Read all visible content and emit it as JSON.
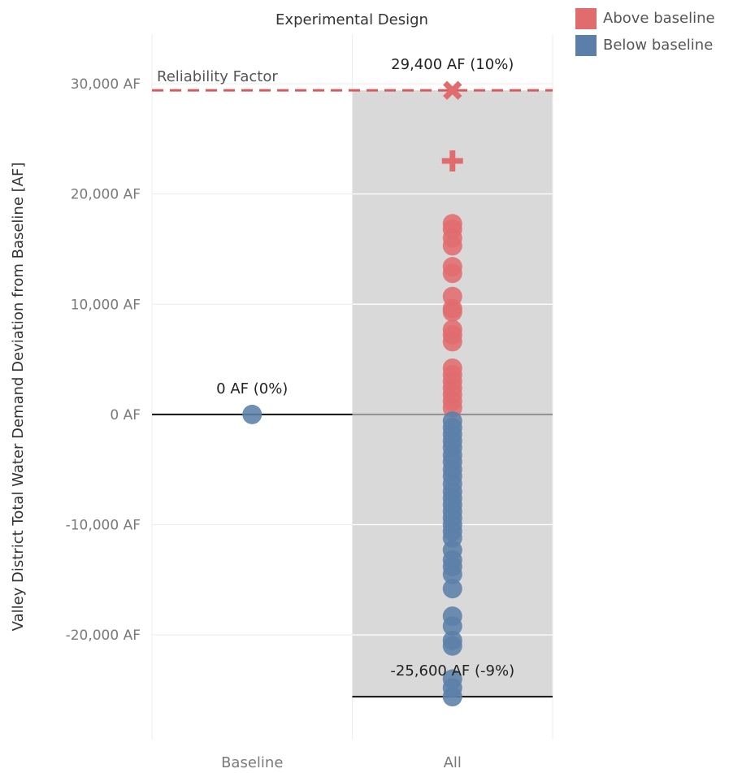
{
  "chart_data": {
    "type": "scatter",
    "title": "Experimental Design",
    "ylabel": "Valley District Total Water Demand Deviation from Baseline [AF]",
    "xlabel": "",
    "categories": [
      "Baseline",
      "All"
    ],
    "ylim": [
      -29500,
      34500
    ],
    "y_ticks": [
      30000,
      20000,
      10000,
      0,
      -10000,
      -20000
    ],
    "y_tick_labels": [
      "30,000 AF",
      "20,000 AF",
      "10,000 AF",
      "0 AF",
      "-10,000 AF",
      "-20,000 AF"
    ],
    "grid": true,
    "legend_position": "top-right",
    "legend": [
      {
        "label": "Above baseline",
        "color": "#e06c6e"
      },
      {
        "label": "Below baseline",
        "color": "#5b7fa9"
      }
    ],
    "reference_line": {
      "label": "Reliability Factor",
      "value": 29400,
      "color": "#d9595c"
    },
    "series": [
      {
        "name": "Baseline",
        "category": "Baseline",
        "points": [
          {
            "y": 0,
            "marker": "circle",
            "group": "Below baseline"
          }
        ]
      },
      {
        "name": "All",
        "category": "All",
        "band": [
          -25600,
          29400
        ],
        "points": [
          {
            "y": 29400,
            "marker": "x",
            "group": "Above baseline"
          },
          {
            "y": 23000,
            "marker": "plus",
            "group": "Above baseline"
          },
          {
            "y": 17300,
            "group": "Above baseline"
          },
          {
            "y": 16800,
            "group": "Above baseline"
          },
          {
            "y": 16000,
            "group": "Above baseline"
          },
          {
            "y": 15300,
            "group": "Above baseline"
          },
          {
            "y": 13400,
            "group": "Above baseline"
          },
          {
            "y": 12800,
            "group": "Above baseline"
          },
          {
            "y": 10700,
            "group": "Above baseline"
          },
          {
            "y": 9600,
            "group": "Above baseline"
          },
          {
            "y": 9300,
            "group": "Above baseline"
          },
          {
            "y": 7700,
            "group": "Above baseline"
          },
          {
            "y": 7200,
            "group": "Above baseline"
          },
          {
            "y": 6600,
            "group": "Above baseline"
          },
          {
            "y": 4200,
            "group": "Above baseline"
          },
          {
            "y": 3600,
            "group": "Above baseline"
          },
          {
            "y": 3000,
            "group": "Above baseline"
          },
          {
            "y": 2400,
            "group": "Above baseline"
          },
          {
            "y": 1800,
            "group": "Above baseline"
          },
          {
            "y": 1200,
            "group": "Above baseline"
          },
          {
            "y": 600,
            "group": "Above baseline"
          },
          {
            "y": -600,
            "group": "Below baseline"
          },
          {
            "y": -1200,
            "group": "Below baseline"
          },
          {
            "y": -1800,
            "group": "Below baseline"
          },
          {
            "y": -2400,
            "group": "Below baseline"
          },
          {
            "y": -3000,
            "group": "Below baseline"
          },
          {
            "y": -3700,
            "group": "Below baseline"
          },
          {
            "y": -4300,
            "group": "Below baseline"
          },
          {
            "y": -5000,
            "group": "Below baseline"
          },
          {
            "y": -5600,
            "group": "Below baseline"
          },
          {
            "y": -6300,
            "group": "Below baseline"
          },
          {
            "y": -7000,
            "group": "Below baseline"
          },
          {
            "y": -7600,
            "group": "Below baseline"
          },
          {
            "y": -8200,
            "group": "Below baseline"
          },
          {
            "y": -8800,
            "group": "Below baseline"
          },
          {
            "y": -9400,
            "group": "Below baseline"
          },
          {
            "y": -10000,
            "group": "Below baseline"
          },
          {
            "y": -10600,
            "group": "Below baseline"
          },
          {
            "y": -11200,
            "group": "Below baseline"
          },
          {
            "y": -12300,
            "group": "Below baseline"
          },
          {
            "y": -13200,
            "group": "Below baseline"
          },
          {
            "y": -13800,
            "group": "Below baseline"
          },
          {
            "y": -14500,
            "group": "Below baseline"
          },
          {
            "y": -15800,
            "group": "Below baseline"
          },
          {
            "y": -18300,
            "group": "Below baseline"
          },
          {
            "y": -19200,
            "group": "Below baseline"
          },
          {
            "y": -20500,
            "group": "Below baseline"
          },
          {
            "y": -21000,
            "group": "Below baseline"
          },
          {
            "y": -24000,
            "group": "Below baseline"
          },
          {
            "y": -24800,
            "group": "Below baseline"
          },
          {
            "y": -25600,
            "group": "Below baseline"
          }
        ]
      }
    ],
    "annotations": [
      {
        "text": "29,400 AF (10%)",
        "category": "All",
        "y": 29400
      },
      {
        "text": "0 AF (0%)",
        "category": "Baseline",
        "y": 0
      },
      {
        "text": "-25,600 AF (-9%)",
        "category": "All",
        "y": -25600
      }
    ]
  }
}
